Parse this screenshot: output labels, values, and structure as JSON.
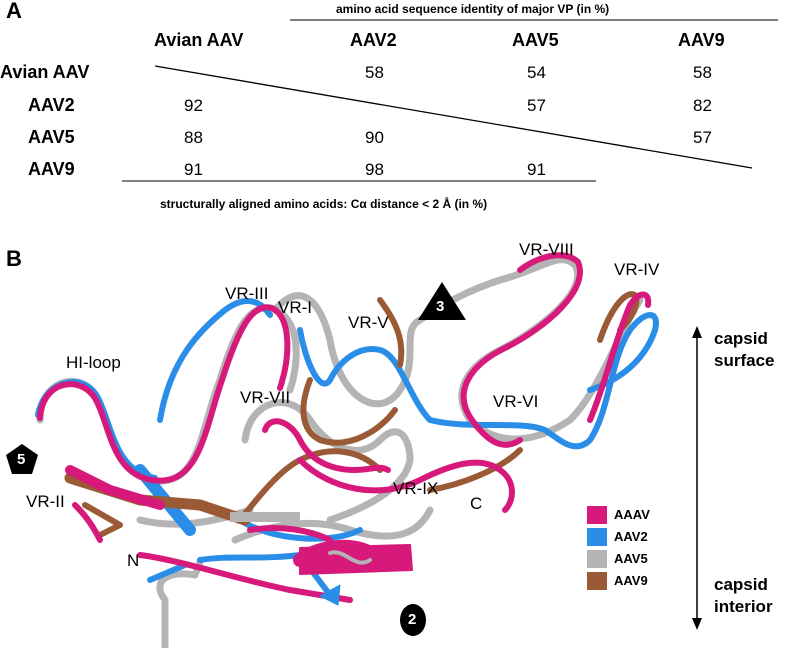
{
  "panel_a": {
    "label": "A",
    "top_header": "amino acid sequence identity of major VP (in %)",
    "bottom_caption": "structurally aligned amino acids: Cα distance < 2 Å (in %)",
    "columns": [
      "Avian AAV",
      "AAV2",
      "AAV5",
      "AAV9"
    ],
    "rows": [
      {
        "label": "Avian AAV",
        "values": [
          "",
          "58",
          "54",
          "58"
        ]
      },
      {
        "label": "AAV2",
        "values": [
          "92",
          "",
          "57",
          "82"
        ]
      },
      {
        "label": "AAV5",
        "values": [
          "88",
          "90",
          "",
          "57"
        ]
      },
      {
        "label": "AAV9",
        "values": [
          "91",
          "98",
          "91",
          ""
        ]
      }
    ]
  },
  "panel_b": {
    "label": "B",
    "loop_labels": {
      "vr_viii": "VR-VIII",
      "vr_iv": "VR-IV",
      "vr_iii": "VR-III",
      "vr_i": "VR-I",
      "vr_v": "VR-V",
      "hi_loop": "HI-loop",
      "vr_vii": "VR-VII",
      "vr_vi": "VR-VI",
      "vr_ix": "VR-IX",
      "vr_ii": "VR-II",
      "c_term": "C",
      "n_term": "N"
    },
    "symmetry": {
      "threefold": "3",
      "fivefold": "5",
      "twofold": "2"
    },
    "axis": {
      "top": "capsid surface",
      "bottom": "capsid interior"
    },
    "legend": [
      {
        "name": "AAAV",
        "color": "#d6197a"
      },
      {
        "name": "AAV2",
        "color": "#2a8ee8"
      },
      {
        "name": "AAV5",
        "color": "#b4b4b4"
      },
      {
        "name": "AAV9",
        "color": "#9a5a35"
      }
    ]
  }
}
